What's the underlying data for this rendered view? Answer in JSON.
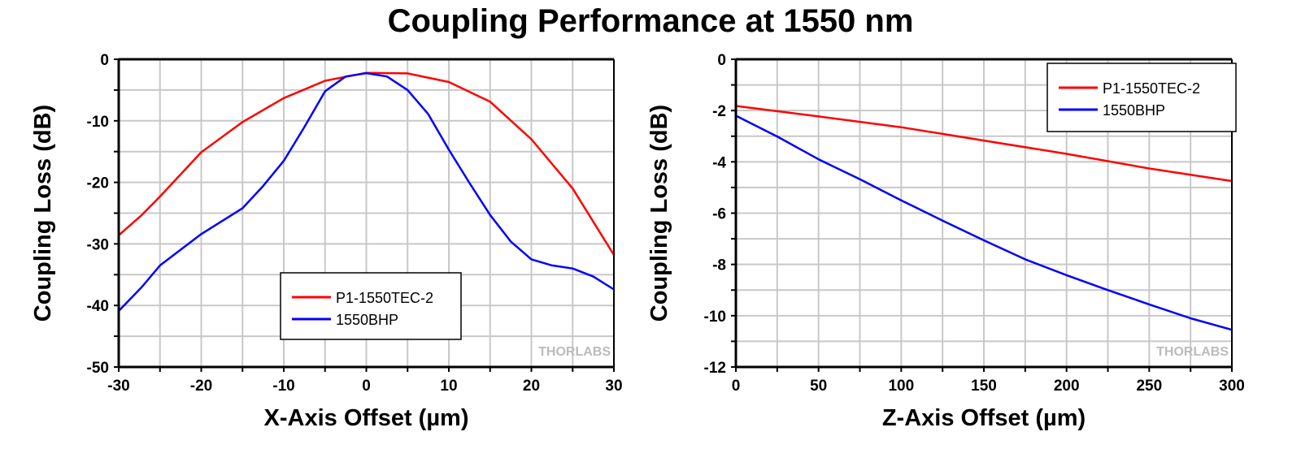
{
  "title": "Coupling Performance at 1550 nm",
  "watermark": "THORLABS",
  "colors": {
    "P1-1550TEC-2": "#ff0000",
    "1550BHP": "#0000ff",
    "grid": "#c8c8c8"
  },
  "chart_data": [
    {
      "type": "line",
      "xlabel": "X-Axis Offset (µm)",
      "ylabel": "Coupling Loss (dB)",
      "xlim": [
        -30,
        30
      ],
      "ylim": [
        -50,
        0
      ],
      "xticks": [
        -30,
        -20,
        -10,
        0,
        10,
        20,
        30
      ],
      "yticks": [
        0,
        -10,
        -20,
        -30,
        -40,
        -50
      ],
      "grid": true,
      "legend_position": "bottom-center",
      "series": [
        {
          "name": "P1-1550TEC-2",
          "x": [
            -30,
            -27.2,
            -25,
            -20,
            -15,
            -10,
            -5,
            0,
            5,
            10,
            15,
            20,
            25,
            30
          ],
          "y": [
            -28.6,
            -25.3,
            -22.3,
            -15.1,
            -10.2,
            -6.3,
            -3.5,
            -2.2,
            -2.3,
            -3.7,
            -6.9,
            -13.0,
            -21.0,
            -31.8
          ]
        },
        {
          "name": "1550BHP",
          "x": [
            -30,
            -27.2,
            -25,
            -20,
            -15,
            -12.5,
            -10,
            -7.5,
            -5,
            -2.5,
            0,
            2.5,
            5,
            7.5,
            10,
            12.5,
            15,
            17.5,
            20,
            22.5,
            25,
            27.5,
            30
          ],
          "y": [
            -40.9,
            -37,
            -33.5,
            -28.4,
            -24.2,
            -20.6,
            -16.5,
            -11,
            -5.2,
            -2.8,
            -2.25,
            -2.8,
            -5,
            -8.9,
            -14.7,
            -20.1,
            -25.3,
            -29.6,
            -32.5,
            -33.5,
            -34,
            -35.3,
            -37.4
          ]
        }
      ]
    },
    {
      "type": "line",
      "xlabel": "Z-Axis Offset (µm)",
      "ylabel": "Coupling Loss (dB)",
      "xlim": [
        0,
        300
      ],
      "ylim": [
        -12,
        0
      ],
      "xticks": [
        0,
        50,
        100,
        150,
        200,
        250,
        300
      ],
      "yticks": [
        0,
        -2,
        -4,
        -6,
        -8,
        -10,
        -12
      ],
      "grid": true,
      "legend_position": "top-right",
      "series": [
        {
          "name": "P1-1550TEC-2",
          "x": [
            0,
            50,
            100,
            150,
            200,
            250,
            300
          ],
          "y": [
            -1.82,
            -2.23,
            -2.65,
            -3.17,
            -3.69,
            -4.26,
            -4.75
          ]
        },
        {
          "name": "1550BHP",
          "x": [
            0,
            25,
            50,
            75,
            100,
            125,
            150,
            175,
            200,
            225,
            250,
            275,
            300
          ],
          "y": [
            -2.2,
            -3.01,
            -3.9,
            -4.68,
            -5.5,
            -6.29,
            -7.06,
            -7.8,
            -8.42,
            -9.0,
            -9.56,
            -10.1,
            -10.55
          ]
        }
      ]
    }
  ]
}
